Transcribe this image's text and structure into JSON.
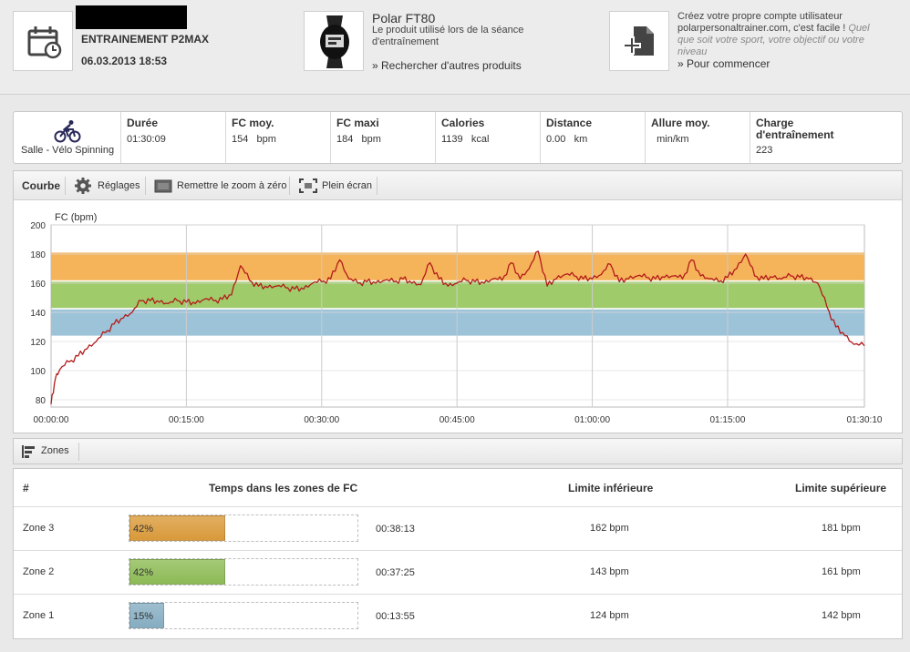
{
  "header": {
    "session_title": "ENTRAINEMENT P2MAX",
    "session_date": "06.03.2013 18:53",
    "product_name": "Polar FT80",
    "product_desc_line1": "Le produit utilisé lors de la séance",
    "product_desc_line2": "d'entraînement",
    "product_link": "» Rechercher d'autres produits",
    "account_line1": "Créez votre propre compte utilisateur",
    "account_line2a": "polarpersonaltrainer.com, c'est facile !",
    "account_line2b": "Quel",
    "account_line3": "que soit votre sport, votre objectif ou votre",
    "account_line4": "niveau",
    "account_link": "» Pour commencer"
  },
  "stats": {
    "sport": "Salle - Vélo Spinning",
    "items": [
      {
        "label": "Durée",
        "value": "01:30:09"
      },
      {
        "label": "FC moy.",
        "value": "154   bpm"
      },
      {
        "label": "FC maxi",
        "value": "184   bpm"
      },
      {
        "label": "Calories",
        "value": "1139   kcal"
      },
      {
        "label": "Distance",
        "value": "0.00   km"
      },
      {
        "label": "Allure moy.",
        "value": "  min/km"
      },
      {
        "label": "Charge d'entraînement",
        "value": "223"
      }
    ]
  },
  "toolbar": {
    "curve": "Courbe",
    "settings": "Réglages",
    "reset_zoom": "Remettre le zoom à zéro",
    "fullscreen": "Plein écran"
  },
  "chart_data": {
    "type": "line",
    "ylabel": "FC (bpm)",
    "ylim": [
      75,
      200
    ],
    "yticks": [
      "80",
      "100",
      "120",
      "140",
      "160",
      "180",
      "200"
    ],
    "xlim_seconds": [
      0,
      5410
    ],
    "xticks": [
      "00:00:00",
      "00:15:00",
      "00:30:00",
      "00:45:00",
      "01:00:00",
      "01:15:00",
      "01:30:10"
    ],
    "zones": [
      {
        "name": "Zone 3",
        "from": 162,
        "to": 181,
        "color": "#f5b35a"
      },
      {
        "name": "Zone 2",
        "from": 143,
        "to": 161,
        "color": "#9fcb6a"
      },
      {
        "name": "Zone 1",
        "from": 124,
        "to": 142,
        "color": "#9dc3d9"
      }
    ],
    "series": [
      {
        "color": "#b31b1b",
        "x_minutes": [
          0,
          0.5,
          1,
          2,
          3,
          4,
          5,
          6,
          7,
          8,
          9,
          10,
          11,
          12,
          13,
          14,
          15,
          16,
          17,
          18,
          19,
          20,
          21,
          22,
          23,
          24,
          25,
          26,
          27,
          28,
          29,
          30,
          31,
          32,
          33,
          34,
          35,
          36,
          37,
          38,
          39,
          40,
          41,
          42,
          43,
          44,
          45,
          46,
          47,
          48,
          49,
          50,
          51,
          52,
          53,
          54,
          55,
          56,
          57,
          58,
          59,
          60,
          61,
          62,
          63,
          64,
          65,
          66,
          67,
          68,
          69,
          70,
          71,
          72,
          73,
          74,
          75,
          76,
          77,
          78,
          79,
          80,
          81,
          82,
          83,
          84,
          85,
          86,
          87,
          88,
          89,
          90.16
        ],
        "y_bpm": [
          77,
          95,
          101,
          106,
          110,
          115,
          120,
          126,
          132,
          136,
          140,
          148,
          148,
          147,
          146,
          148,
          147,
          146,
          149,
          148,
          149,
          152,
          172,
          162,
          158,
          157,
          158,
          157,
          156,
          156,
          160,
          161,
          163,
          176,
          163,
          160,
          161,
          160,
          162,
          161,
          163,
          160,
          159,
          174,
          163,
          158,
          160,
          162,
          161,
          160,
          163,
          162,
          174,
          163,
          170,
          182,
          158,
          163,
          166,
          165,
          163,
          163,
          166,
          173,
          161,
          163,
          165,
          164,
          163,
          164,
          165,
          163,
          176,
          165,
          163,
          161,
          164,
          170,
          180,
          165,
          163,
          164,
          163,
          165,
          164,
          163,
          160,
          144,
          130,
          124,
          118,
          117
        ]
      }
    ]
  },
  "zones": {
    "label": "Zones",
    "headers": {
      "num": "#",
      "time": "Temps dans les zones de FC",
      "lower": "Limite inférieure",
      "upper": "Limite supérieure"
    },
    "rows": [
      {
        "name": "Zone 3",
        "pct_label": "42%",
        "pct": 42,
        "time": "00:38:13",
        "lower": "162 bpm",
        "upper": "181 bpm",
        "color": "#d99a3a"
      },
      {
        "name": "Zone 2",
        "pct_label": "42%",
        "pct": 42,
        "time": "00:37:25",
        "lower": "143 bpm",
        "upper": "161 bpm",
        "color": "#8dbb55"
      },
      {
        "name": "Zone 1",
        "pct_label": "15%",
        "pct": 15,
        "time": "00:13:55",
        "lower": "124 bpm",
        "upper": "142 bpm",
        "color": "#86adc2"
      }
    ]
  }
}
